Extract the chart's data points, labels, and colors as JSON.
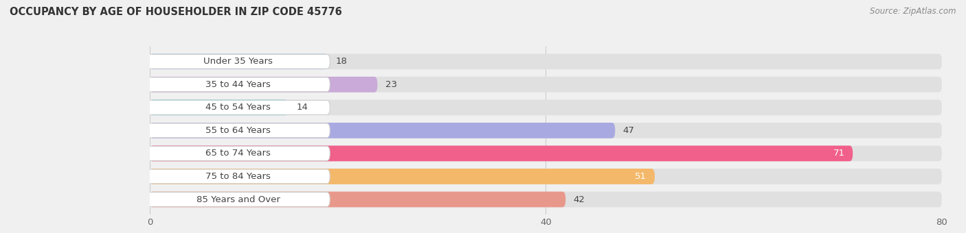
{
  "title": "OCCUPANCY BY AGE OF HOUSEHOLDER IN ZIP CODE 45776",
  "source": "Source: ZipAtlas.com",
  "categories": [
    "Under 35 Years",
    "35 to 44 Years",
    "45 to 54 Years",
    "55 to 64 Years",
    "65 to 74 Years",
    "75 to 84 Years",
    "85 Years and Over"
  ],
  "values": [
    18,
    23,
    14,
    47,
    71,
    51,
    42
  ],
  "bar_colors": [
    "#adc8e8",
    "#c9aad8",
    "#80cece",
    "#a9a9e2",
    "#f0608a",
    "#f4b86a",
    "#e8988a"
  ],
  "background_color": "#f0f0f0",
  "bar_bg_color": "#e0e0e0",
  "xlim": [
    0,
    80
  ],
  "xticks": [
    0,
    40,
    80
  ],
  "title_fontsize": 10.5,
  "source_fontsize": 8.5,
  "label_fontsize": 9.5,
  "value_fontsize": 9.5,
  "value_inside_threshold": 50,
  "value_inside_color": "#ffffff",
  "value_outside_color": "#444444",
  "label_text_color": "#444444",
  "grid_color": "#cccccc",
  "tick_color": "#666666"
}
